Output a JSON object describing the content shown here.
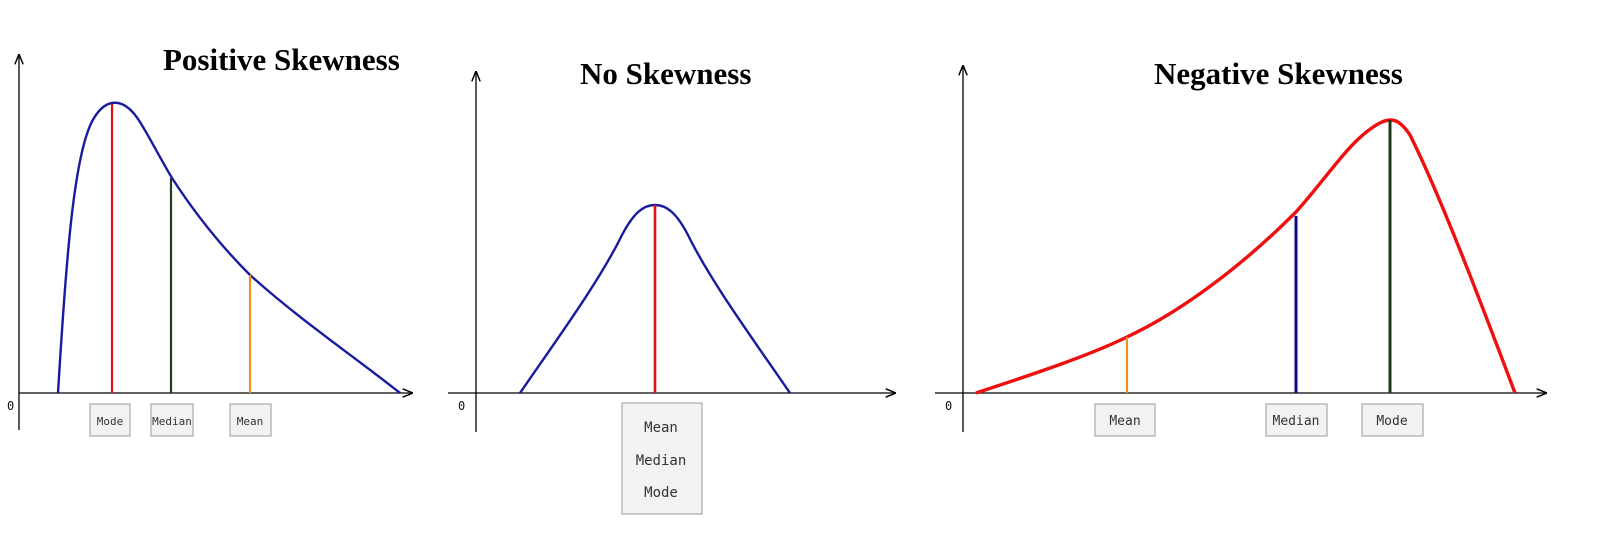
{
  "panels": [
    {
      "id": "positive",
      "title": "Positive Skewness",
      "origin_label": "0",
      "curve_color": "#1a1aa0",
      "measures": [
        {
          "name": "mode",
          "label": "Mode",
          "color": "#e01010"
        },
        {
          "name": "median",
          "label": "Median",
          "color": "#223d1a"
        },
        {
          "name": "mean",
          "label": "Mean",
          "color": "#f09020"
        }
      ]
    },
    {
      "id": "none",
      "title": "No Skewness",
      "origin_label": "0",
      "curve_color": "#1a1aa0",
      "measures": [
        {
          "name": "mean-median-mode",
          "label": "",
          "color": "#e01010"
        }
      ],
      "stacked_labels": [
        "Mean",
        "Median",
        "Mode"
      ]
    },
    {
      "id": "negative",
      "title": "Negative Skewness",
      "origin_label": "0",
      "curve_color": "#ee1010",
      "measures": [
        {
          "name": "mean",
          "label": "Mean",
          "color": "#f09020"
        },
        {
          "name": "median",
          "label": "Median",
          "color": "#0c0c80"
        },
        {
          "name": "mode",
          "label": "Mode",
          "color": "#1e3a16"
        }
      ]
    }
  ]
}
